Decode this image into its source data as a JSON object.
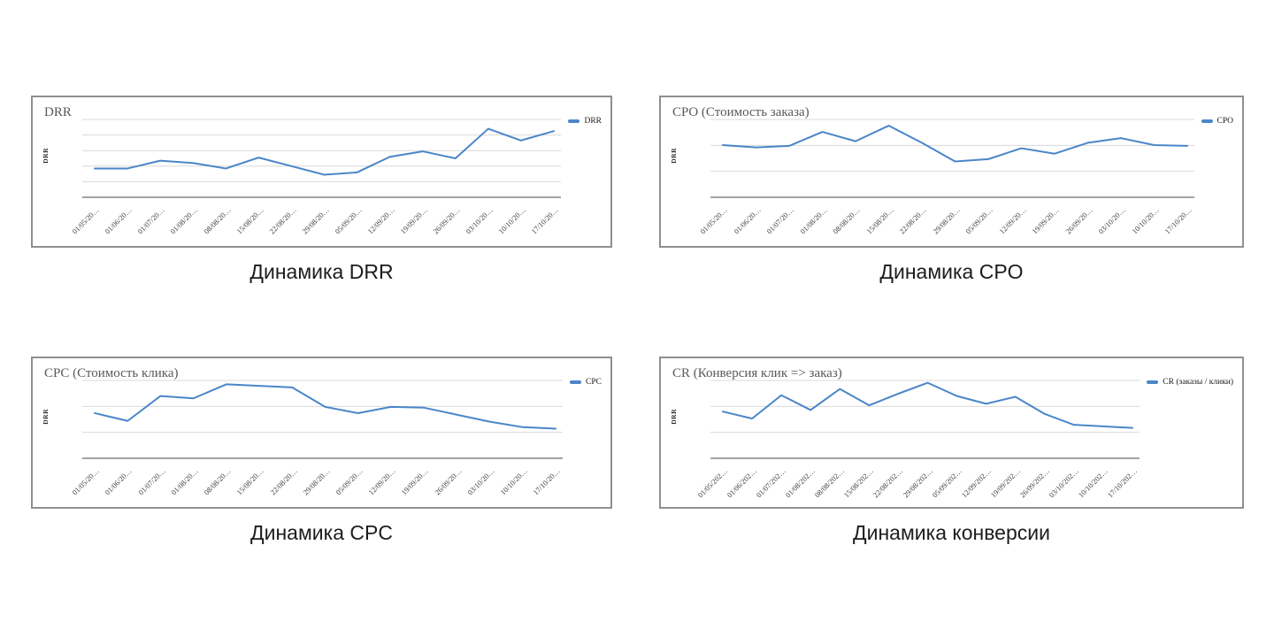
{
  "chart_data": [
    {
      "type": "line",
      "title": "DRR",
      "caption": "Динамика DRR",
      "ylabel": "DRR",
      "legend_label": "DRR",
      "legend_position": "right",
      "line_color": "#4a86c8",
      "grid": "horizontal",
      "grid_divisions": 5,
      "ylim": [
        0,
        100
      ],
      "categories": [
        "01/05/20…",
        "01/06/20…",
        "01/07/20…",
        "01/08/20…",
        "08/08/20…",
        "15/08/20…",
        "22/08/20…",
        "29/08/20…",
        "05/09/20…",
        "12/09/20…",
        "19/09/20…",
        "26/09/20…",
        "03/10/20…",
        "10/10/20…",
        "17/10/20…"
      ],
      "series": [
        {
          "name": "DRR",
          "values": [
            37,
            37,
            47,
            44,
            37,
            51,
            40,
            29,
            32,
            52,
            59,
            50,
            88,
            73,
            85
          ]
        }
      ]
    },
    {
      "type": "line",
      "title": "CPO (Стоимость заказа)",
      "caption": "Динамика CPO",
      "ylabel": "DRR",
      "legend_label": "CPO",
      "legend_position": "right",
      "line_color": "#4a86c8",
      "grid": "horizontal",
      "grid_divisions": 3,
      "ylim": [
        0,
        100
      ],
      "categories": [
        "01/05/20…",
        "01/06/20…",
        "01/07/20…",
        "01/08/20…",
        "08/08/20…",
        "15/08/20…",
        "22/08/20…",
        "29/08/20…",
        "05/09/20…",
        "12/09/20…",
        "19/09/20…",
        "26/09/20…",
        "03/10/20…",
        "10/10/20…",
        "17/10/20…"
      ],
      "series": [
        {
          "name": "CPO",
          "values": [
            67,
            64,
            66,
            84,
            72,
            92,
            70,
            46,
            49,
            63,
            56,
            70,
            76,
            67,
            66
          ]
        }
      ]
    },
    {
      "type": "line",
      "title": "CPC (Стоимость клика)",
      "caption": "Динамика CPC",
      "ylabel": "DRR",
      "legend_label": "CPC",
      "legend_position": "right",
      "line_color": "#4a86c8",
      "grid": "horizontal",
      "grid_divisions": 3,
      "ylim": [
        0,
        100
      ],
      "categories": [
        "01/05/20…",
        "01/06/20…",
        "01/07/20…",
        "01/08/20…",
        "08/08/20…",
        "15/08/20…",
        "22/08/20…",
        "29/08/20…",
        "05/09/20…",
        "12/09/20…",
        "19/09/20…",
        "26/09/20…",
        "03/10/20…",
        "10/10/20…",
        "17/10/20…"
      ],
      "series": [
        {
          "name": "CPC",
          "values": [
            58,
            48,
            80,
            77,
            95,
            93,
            91,
            66,
            58,
            66,
            65,
            56,
            47,
            40,
            38
          ]
        }
      ]
    },
    {
      "type": "line",
      "title": "CR (Конверсия клик => заказ)",
      "caption": "Динамика конверсии",
      "ylabel": "DRR",
      "legend_label": "CR (заказы / клики)",
      "legend_position": "right",
      "line_color": "#4a86c8",
      "grid": "horizontal",
      "grid_divisions": 3,
      "ylim": [
        0,
        100
      ],
      "categories": [
        "01/05/202…",
        "01/06/202…",
        "01/07/202…",
        "01/08/202…",
        "08/08/202…",
        "15/08/202…",
        "22/08/202…",
        "29/08/202…",
        "05/09/202…",
        "12/09/202…",
        "19/09/202…",
        "26/09/202…",
        "03/10/202…",
        "10/10/202…",
        "17/10/202…"
      ],
      "series": [
        {
          "name": "CR (заказы / клики)",
          "values": [
            60,
            51,
            81,
            62,
            89,
            68,
            83,
            97,
            80,
            70,
            79,
            57,
            43,
            41,
            39
          ]
        }
      ]
    }
  ],
  "style": {
    "gridline_color": "#d9d9d9",
    "axis_color": "#a3a3a3",
    "border_color": "#8f8f8f",
    "title_color": "#595959",
    "caption_color": "#1c1c1c"
  }
}
